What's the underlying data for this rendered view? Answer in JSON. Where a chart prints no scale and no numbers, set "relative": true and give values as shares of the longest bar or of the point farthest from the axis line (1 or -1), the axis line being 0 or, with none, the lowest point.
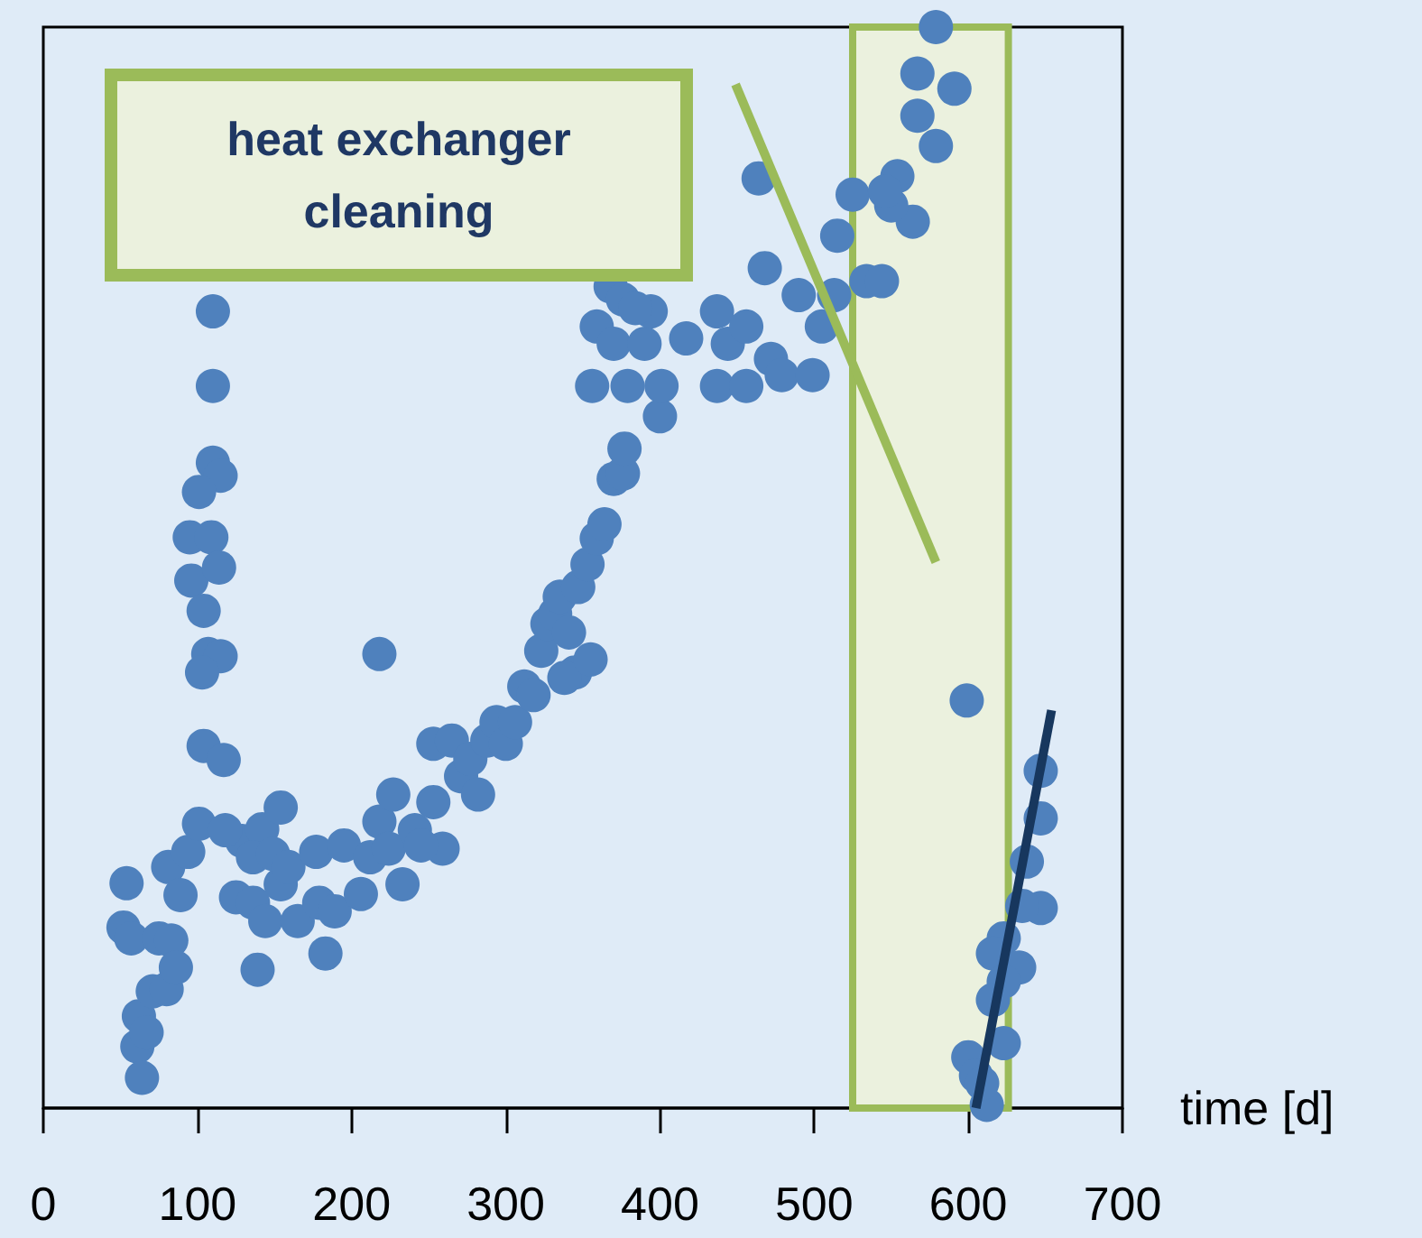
{
  "chart_data": {
    "type": "scatter",
    "relative": true,
    "xlabel": "time [d]",
    "xlim": [
      0,
      700
    ],
    "xticks": [
      0,
      100,
      200,
      300,
      400,
      500,
      600,
      700
    ],
    "grid": false,
    "marker": "circle",
    "annotations": [
      "heat exchanger cleaning"
    ],
    "bands": [
      {
        "axis": "x",
        "from": 525,
        "to": 626,
        "color": "#ebf1de"
      }
    ],
    "series": [
      {
        "type": "scatter",
        "color": "#4f81bd",
        "x": [
          52,
          54,
          57,
          61,
          62,
          64,
          67,
          71,
          75,
          80,
          83,
          81,
          86,
          89,
          94,
          101,
          110,
          110,
          110,
          115,
          101,
          95,
          109,
          96,
          114,
          104,
          107,
          115,
          103,
          104,
          117,
          129,
          118,
          142,
          154,
          136,
          149,
          125,
          136,
          144,
          139,
          154,
          159,
          165,
          177,
          183,
          179,
          189,
          195,
          206,
          212,
          218,
          224,
          233,
          218,
          227,
          241,
          253,
          259,
          245,
          253,
          265,
          271,
          277,
          282,
          288,
          294,
          300,
          306,
          312,
          318,
          323,
          327,
          332,
          335,
          341,
          347,
          353,
          345,
          359,
          364,
          338,
          370,
          376,
          355,
          377,
          356,
          379,
          400,
          401,
          359,
          370,
          390,
          394,
          417,
          437,
          444,
          456,
          437,
          456,
          472,
          479,
          499,
          464,
          468,
          490,
          505,
          513,
          515,
          525,
          534,
          544,
          554,
          564,
          550,
          579,
          567,
          591,
          567,
          579,
          599,
          368,
          376,
          384,
          546,
          647,
          647,
          638,
          647,
          635,
          623,
          616,
          633,
          623,
          616,
          623,
          600,
          605,
          612,
          609
        ],
        "values": [
          0.167,
          0.208,
          0.157,
          0.057,
          0.085,
          0.028,
          0.07,
          0.108,
          0.157,
          0.11,
          0.155,
          0.223,
          0.13,
          0.197,
          0.237,
          0.263,
          0.737,
          0.668,
          0.597,
          0.585,
          0.57,
          0.528,
          0.528,
          0.488,
          0.5,
          0.46,
          0.42,
          0.418,
          0.403,
          0.335,
          0.322,
          0.247,
          0.257,
          0.258,
          0.278,
          0.232,
          0.235,
          0.195,
          0.19,
          0.173,
          0.128,
          0.207,
          0.223,
          0.173,
          0.237,
          0.143,
          0.19,
          0.182,
          0.243,
          0.198,
          0.232,
          0.265,
          0.24,
          0.207,
          0.42,
          0.29,
          0.257,
          0.283,
          0.24,
          0.243,
          0.337,
          0.34,
          0.307,
          0.323,
          0.29,
          0.34,
          0.357,
          0.337,
          0.357,
          0.39,
          0.382,
          0.423,
          0.448,
          0.457,
          0.473,
          0.44,
          0.482,
          0.503,
          0.403,
          0.527,
          0.54,
          0.398,
          0.582,
          0.587,
          0.415,
          0.61,
          0.668,
          0.668,
          0.64,
          0.668,
          0.723,
          0.707,
          0.707,
          0.737,
          0.712,
          0.737,
          0.707,
          0.723,
          0.668,
          0.668,
          0.693,
          0.678,
          0.678,
          0.86,
          0.777,
          0.752,
          0.723,
          0.752,
          0.807,
          0.845,
          0.765,
          0.765,
          0.862,
          0.82,
          0.835,
          1,
          0.957,
          0.943,
          0.918,
          0.89,
          0.377,
          0.76,
          0.748,
          0.74,
          0.848,
          0.312,
          0.268,
          0.228,
          0.185,
          0.187,
          0.157,
          0.143,
          0.13,
          0.117,
          0.1,
          0.06,
          0.047,
          0.03,
          0.003,
          0.023
        ]
      },
      {
        "type": "line",
        "color": "#9bbb59",
        "x": [
          449,
          579
        ],
        "values": [
          0.947,
          0.505
        ],
        "marker": "none"
      },
      {
        "type": "line",
        "color": "#17375e",
        "x": [
          605,
          654
        ],
        "values": [
          0,
          0.368
        ],
        "marker": "none"
      }
    ]
  }
}
